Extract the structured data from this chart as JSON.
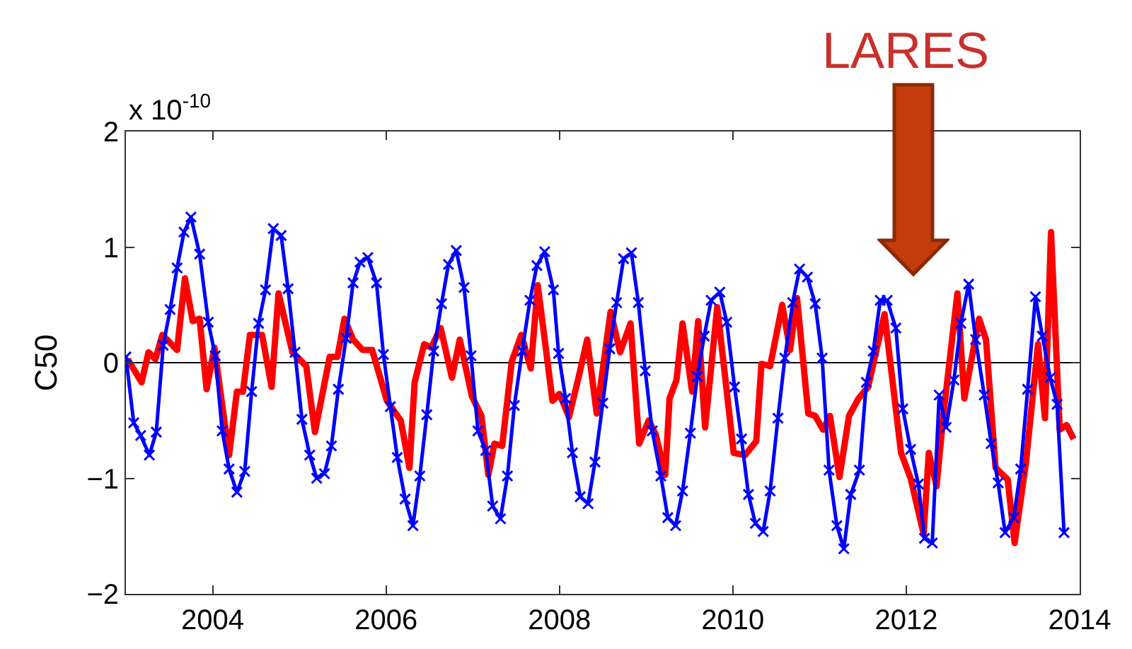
{
  "chart_data": {
    "type": "line",
    "ylabel": "C50",
    "xlim": [
      2003,
      2014
    ],
    "xticks": [
      2004,
      2006,
      2008,
      2010,
      2012,
      2014
    ],
    "ylim": [
      -2,
      2
    ],
    "yticks": [
      {
        "value": -2,
        "label": "−2"
      },
      {
        "value": -1,
        "label": "−1"
      },
      0,
      1,
      2
    ],
    "grid": false,
    "ref_lines": [
      {
        "axis": "y",
        "value": 0,
        "color": "#000000"
      }
    ],
    "annotations": [
      "x 10$^{-10}$",
      "LARES"
    ],
    "series": [
      {
        "color": "#ff0000",
        "marker": "none",
        "line_style": "solid",
        "x": [
          2003.02,
          2003.18,
          2003.26,
          2003.34,
          2003.42,
          2003.59,
          2003.68,
          2003.77,
          2003.85,
          2003.93,
          2004.02,
          2004.19,
          2004.28,
          2004.35,
          2004.43,
          2004.57,
          2004.68,
          2004.76,
          2004.92,
          2005.08,
          2005.18,
          2005.35,
          2005.44,
          2005.52,
          2005.62,
          2005.73,
          2005.84,
          2006.01,
          2006.17,
          2006.27,
          2006.33,
          2006.44,
          2006.52,
          2006.63,
          2006.76,
          2006.85,
          2006.99,
          2007.1,
          2007.18,
          2007.25,
          2007.34,
          2007.45,
          2007.56,
          2007.67,
          2007.75,
          2007.92,
          2008.0,
          2008.11,
          2008.22,
          2008.32,
          2008.43,
          2008.59,
          2008.7,
          2008.82,
          2008.92,
          2009.03,
          2009.11,
          2009.22,
          2009.27,
          2009.35,
          2009.42,
          2009.53,
          2009.6,
          2009.68,
          2009.82,
          2010.01,
          2010.14,
          2010.27,
          2010.33,
          2010.43,
          2010.57,
          2010.66,
          2010.74,
          2010.87,
          2010.95,
          2011.04,
          2011.12,
          2011.23,
          2011.34,
          2011.45,
          2011.56,
          2011.75,
          2011.94,
          2012.05,
          2012.2,
          2012.26,
          2012.35,
          2012.43,
          2012.59,
          2012.67,
          2012.84,
          2012.92,
          2013.03,
          2013.17,
          2013.25,
          2013.38,
          2013.52,
          2013.6,
          2013.67,
          2013.77,
          2013.85,
          2013.93
        ],
        "values": [
          0.03,
          -0.17,
          0.09,
          0.03,
          0.24,
          0.11,
          0.73,
          0.36,
          0.38,
          -0.23,
          0.13,
          -0.8,
          -0.25,
          -0.25,
          0.24,
          0.24,
          -0.21,
          0.6,
          0.09,
          -0.03,
          -0.6,
          0.05,
          0.05,
          0.38,
          0.2,
          0.11,
          0.11,
          -0.33,
          -0.5,
          -0.91,
          -0.17,
          0.16,
          0.13,
          0.3,
          -0.13,
          0.2,
          -0.29,
          -0.46,
          -0.97,
          -0.7,
          -0.72,
          0.01,
          0.24,
          -0.05,
          0.67,
          -0.33,
          -0.27,
          -0.47,
          -0.13,
          0.2,
          -0.44,
          0.44,
          0.09,
          0.34,
          -0.7,
          -0.5,
          -0.62,
          -0.97,
          -0.31,
          -0.15,
          0.34,
          -0.25,
          0.36,
          -0.56,
          0.48,
          -0.78,
          -0.8,
          -0.68,
          -0.01,
          -0.03,
          0.5,
          0.11,
          0.56,
          -0.44,
          -0.46,
          -0.58,
          -0.46,
          -0.99,
          -0.46,
          -0.31,
          -0.21,
          0.42,
          -0.78,
          -1.0,
          -1.48,
          -0.78,
          -1.07,
          -0.44,
          0.6,
          -0.31,
          0.38,
          0.2,
          -0.91,
          -1.01,
          -1.56,
          -0.87,
          0.16,
          -0.48,
          1.13,
          -0.58,
          -0.54,
          -0.66
        ]
      },
      {
        "color": "#0000ff",
        "marker": "cross",
        "line_style": "solid",
        "x": [
          2003.0,
          2003.09,
          2003.17,
          2003.27,
          2003.35,
          2003.43,
          2003.51,
          2003.59,
          2003.67,
          2003.75,
          2003.85,
          2003.95,
          2004.03,
          2004.11,
          2004.19,
          2004.28,
          2004.37,
          2004.45,
          2004.53,
          2004.61,
          2004.7,
          2004.79,
          2004.87,
          2004.95,
          2005.03,
          2005.12,
          2005.2,
          2005.29,
          2005.37,
          2005.45,
          2005.54,
          2005.62,
          2005.7,
          2005.79,
          2005.89,
          2005.97,
          2006.05,
          2006.13,
          2006.22,
          2006.31,
          2006.39,
          2006.47,
          2006.55,
          2006.64,
          2006.72,
          2006.81,
          2006.9,
          2006.98,
          2007.06,
          2007.15,
          2007.23,
          2007.32,
          2007.4,
          2007.48,
          2007.57,
          2007.66,
          2007.74,
          2007.83,
          2007.93,
          2007.99,
          2008.07,
          2008.15,
          2008.24,
          2008.33,
          2008.41,
          2008.5,
          2008.58,
          2008.66,
          2008.74,
          2008.83,
          2008.91,
          2008.99,
          2009.07,
          2009.17,
          2009.25,
          2009.34,
          2009.42,
          2009.51,
          2009.59,
          2009.67,
          2009.75,
          2009.85,
          2009.93,
          2010.02,
          2010.1,
          2010.18,
          2010.26,
          2010.35,
          2010.43,
          2010.52,
          2010.6,
          2010.69,
          2010.77,
          2010.86,
          2010.95,
          2011.03,
          2011.11,
          2011.2,
          2011.28,
          2011.36,
          2011.46,
          2011.54,
          2011.62,
          2011.7,
          2011.78,
          2011.88,
          2011.96,
          2012.05,
          2012.14,
          2012.21,
          2012.3,
          2012.38,
          2012.46,
          2012.55,
          2012.63,
          2012.72,
          2012.8,
          2012.9,
          2012.98,
          2013.06,
          2013.14,
          2013.24,
          2013.32,
          2013.4,
          2013.49,
          2013.57,
          2013.66,
          2013.74,
          2013.82
        ],
        "values": [
          0.05,
          -0.52,
          -0.63,
          -0.8,
          -0.6,
          0.15,
          0.46,
          0.82,
          1.13,
          1.26,
          0.94,
          0.35,
          0.06,
          -0.59,
          -0.92,
          -1.12,
          -0.94,
          -0.25,
          0.34,
          0.63,
          1.16,
          1.1,
          0.64,
          0.09,
          -0.49,
          -0.8,
          -1.0,
          -0.96,
          -0.72,
          -0.23,
          0.21,
          0.69,
          0.87,
          0.91,
          0.69,
          0.07,
          -0.38,
          -0.82,
          -1.18,
          -1.41,
          -0.98,
          -0.45,
          0.1,
          0.51,
          0.85,
          0.97,
          0.65,
          0.06,
          -0.59,
          -0.76,
          -1.24,
          -1.35,
          -0.98,
          -0.37,
          0.1,
          0.54,
          0.84,
          0.96,
          0.63,
          0.08,
          -0.31,
          -0.78,
          -1.16,
          -1.22,
          -0.86,
          -0.35,
          0.12,
          0.52,
          0.9,
          0.95,
          0.52,
          -0.07,
          -0.59,
          -0.98,
          -1.34,
          -1.41,
          -1.11,
          -0.61,
          -0.12,
          0.23,
          0.54,
          0.61,
          0.35,
          -0.21,
          -0.66,
          -1.14,
          -1.39,
          -1.46,
          -1.11,
          -0.48,
          0.04,
          0.52,
          0.81,
          0.74,
          0.51,
          0.04,
          -0.93,
          -1.41,
          -1.61,
          -1.14,
          -0.93,
          -0.17,
          0.1,
          0.54,
          0.54,
          0.3,
          -0.4,
          -0.75,
          -1.05,
          -1.52,
          -1.56,
          -0.28,
          -0.56,
          -0.15,
          0.34,
          0.68,
          0.2,
          -0.28,
          -0.7,
          -1.04,
          -1.47,
          -1.34,
          -0.92,
          -0.23,
          0.57,
          0.23,
          -0.13,
          -0.36,
          -1.47
        ]
      }
    ]
  }
}
